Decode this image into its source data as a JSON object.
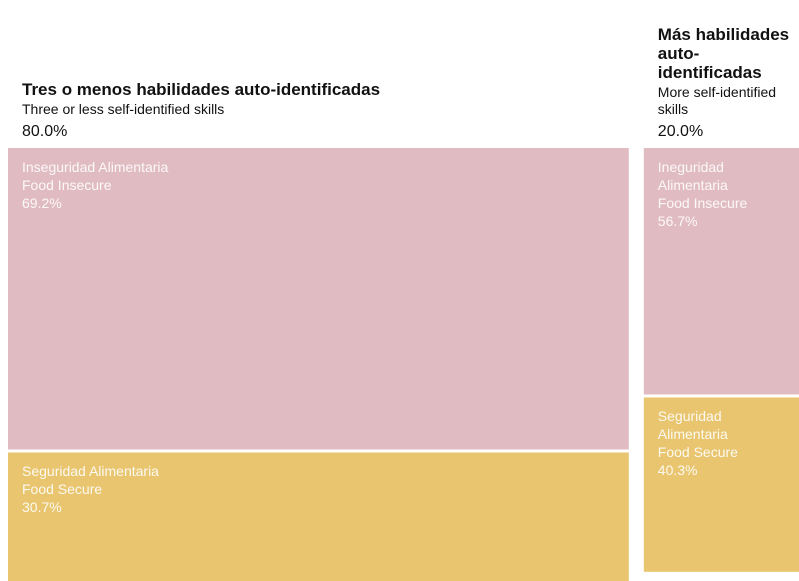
{
  "chart_data": {
    "type": "mosaic",
    "columns": [
      {
        "title": "Tres o menos habilidades auto-identificadas",
        "subtitle": "Three or less self-identified skills",
        "share": 80,
        "share_label": "80.0%",
        "segments": [
          {
            "label_es": "Inseguridad Alimentaria",
            "label_en": "Food Insecure",
            "value": 69.2,
            "value_label": "69.2%",
            "color": "#e0bcc2"
          },
          {
            "label_es": "Seguridad Alimentaria",
            "label_en": "Food Secure",
            "value": 30.7,
            "value_label": "30.7%",
            "color": "#e8c56e"
          }
        ]
      },
      {
        "title": "Más habilidades auto-identificadas",
        "subtitle": "More self-identified skills",
        "share": 20,
        "share_label": "20.0%",
        "segments": [
          {
            "label_es": "Ineguridad Alimentaria",
            "label_en": "Food Insecure",
            "value": 56.7,
            "value_label": "56.7%",
            "color": "#e0bcc2"
          },
          {
            "label_es": "Seguridad Alimentaria",
            "label_en": "Food Secure",
            "value": 40.3,
            "value_label": "40.3%",
            "color": "#e8c56e"
          }
        ]
      }
    ]
  }
}
